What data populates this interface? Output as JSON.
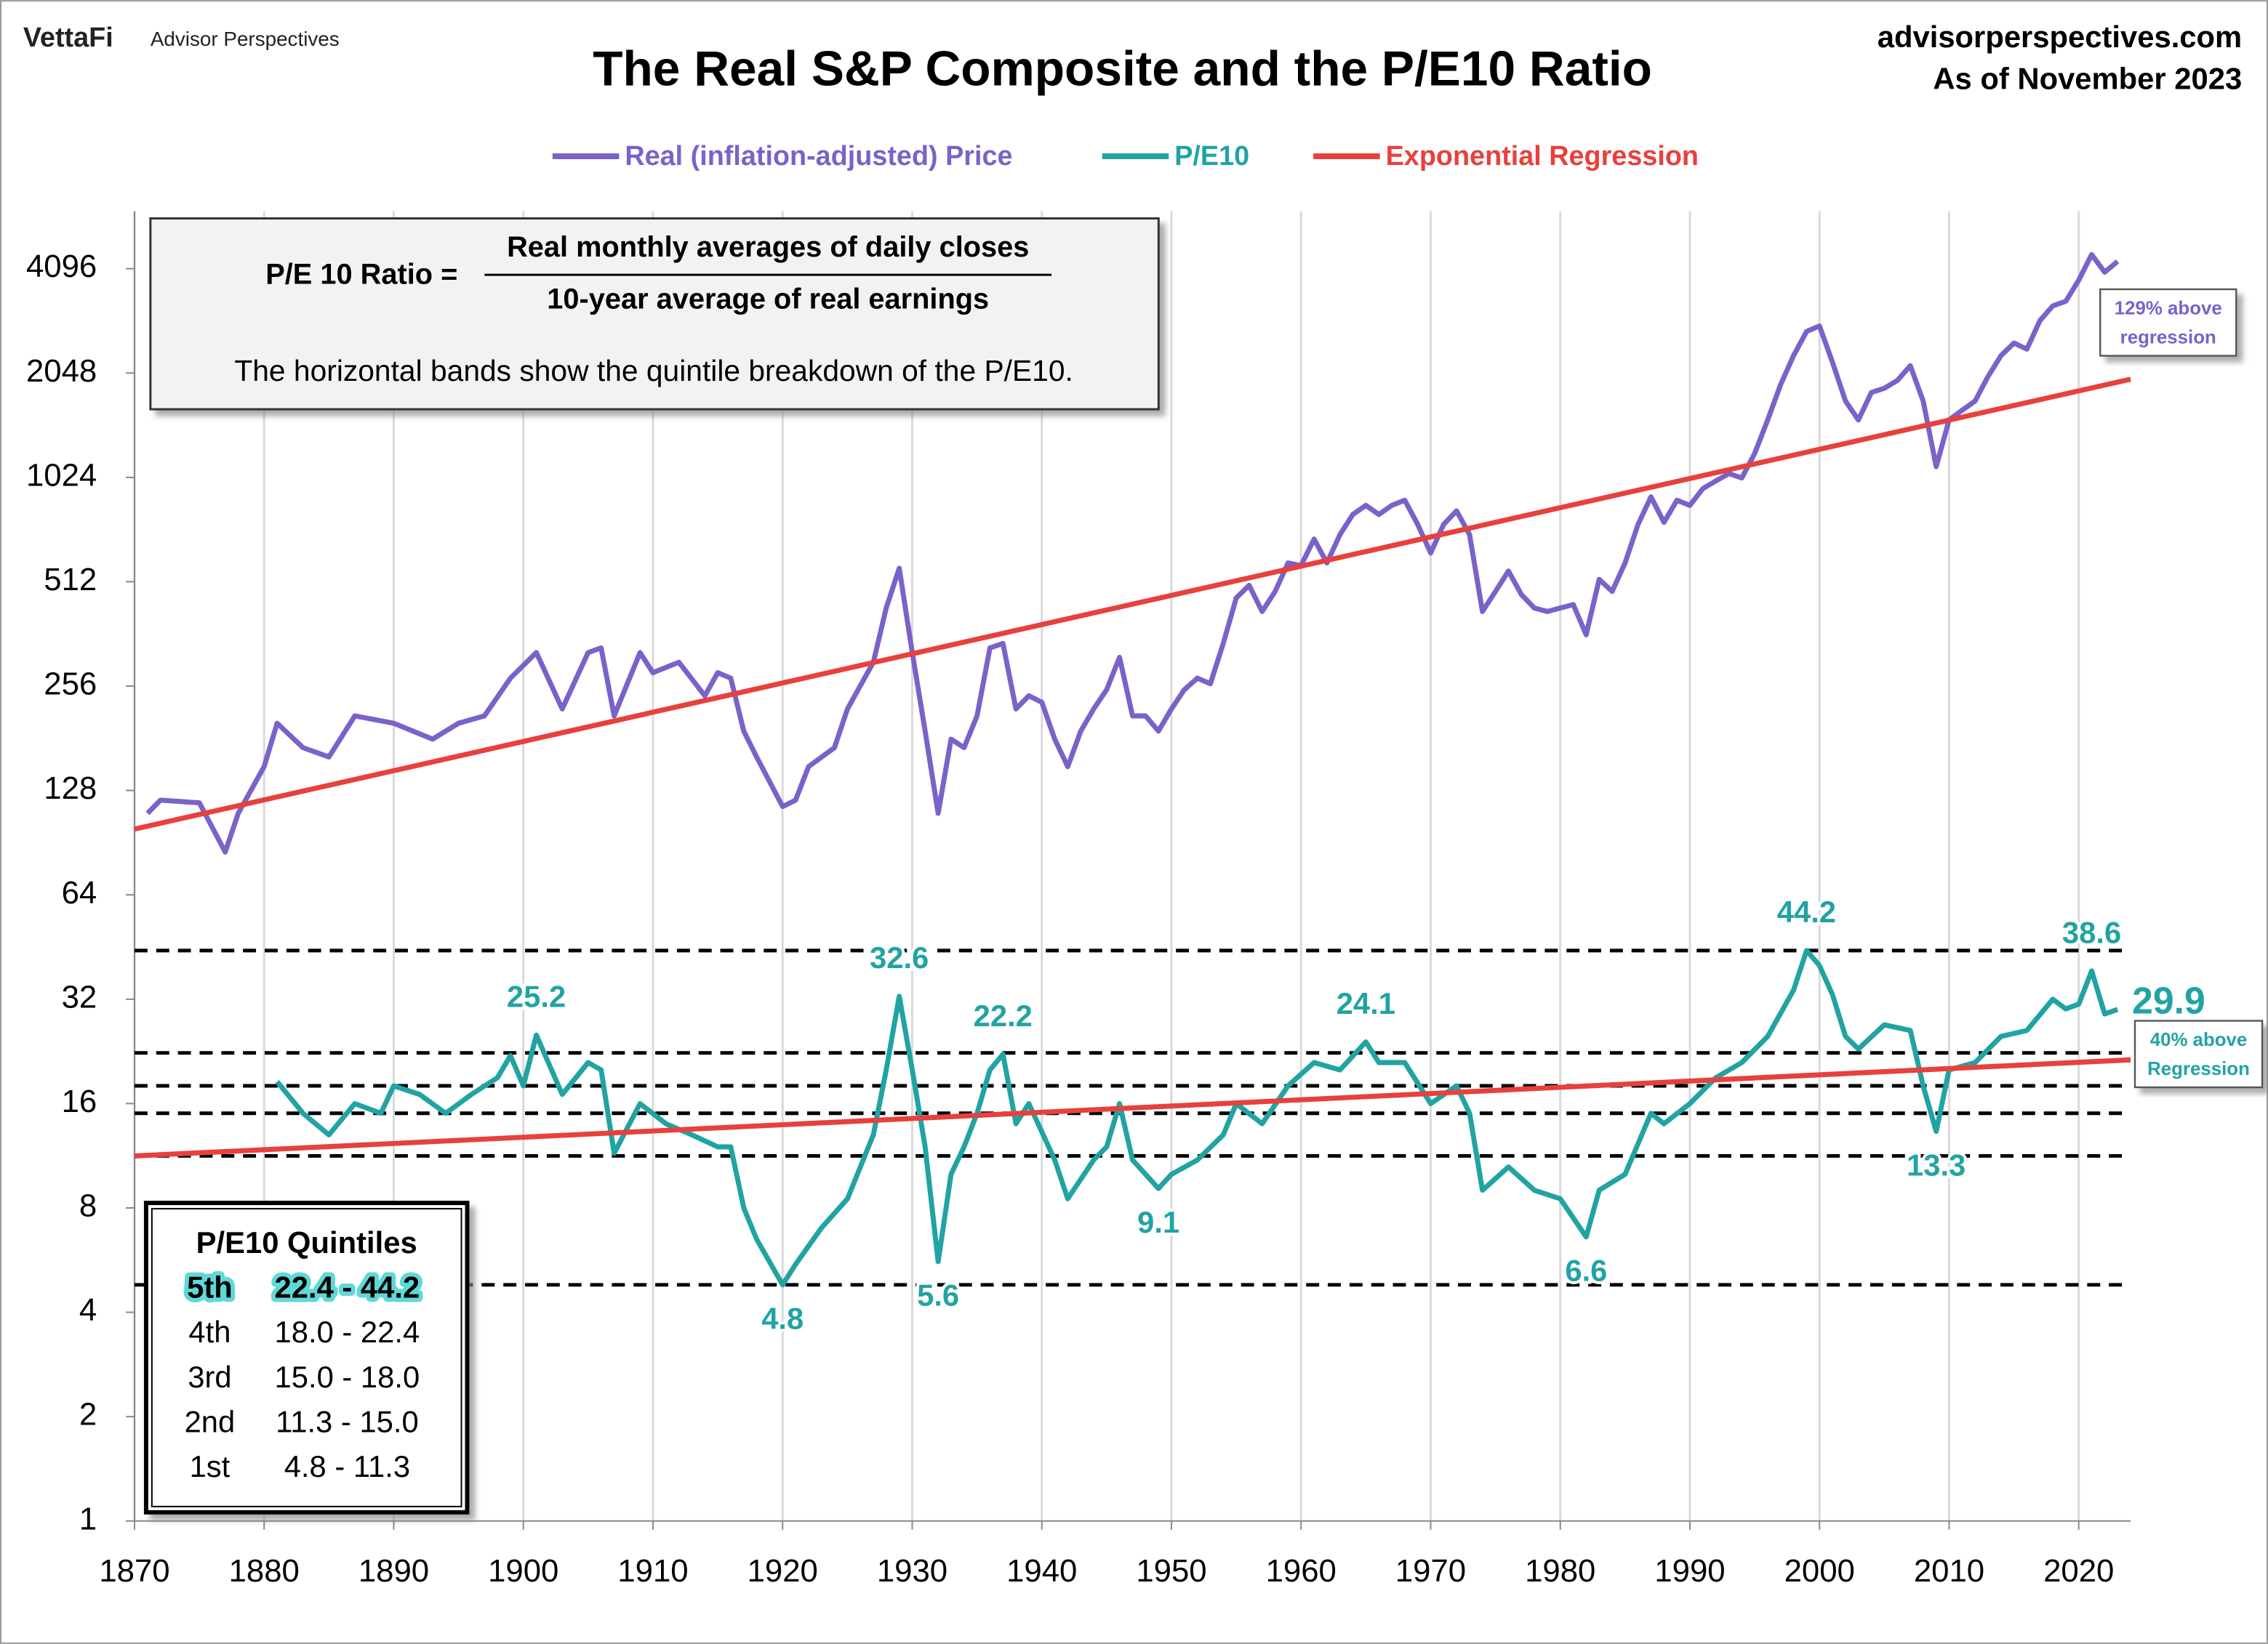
{
  "header": {
    "logo": "VettaFi",
    "brand": "Advisor Perspectives",
    "site": "advisorperspectives.com",
    "date": "As of November 2023"
  },
  "formula_box": {
    "lhs": "P/E 10 Ratio =",
    "numerator": "Real monthly averages of daily closes",
    "denominator": "10-year average of real earnings",
    "note": "The horizontal bands show the quintile breakdown of the P/E10."
  },
  "quintile_table": {
    "title": "P/E10 Quintiles",
    "highlight_row": 0,
    "rows": [
      [
        "5th",
        "22.4 - 44.2"
      ],
      [
        "4th",
        "18.0 - 22.4"
      ],
      [
        "3rd",
        "15.0 - 18.0"
      ],
      [
        "2nd",
        "11.3 - 15.0"
      ],
      [
        "1st",
        "4.8 - 11.3"
      ]
    ]
  },
  "callouts": [
    {
      "lines": [
        "129% above",
        "regression"
      ],
      "color": "#7a62c9"
    },
    {
      "lines": [
        "40% above",
        "Regression"
      ],
      "color": "#21a3a3"
    }
  ],
  "chart_data": {
    "type": "line",
    "title": "The Real S&P Composite and the P/E10 Ratio",
    "log_scale": true,
    "grid": "x",
    "xlim": [
      1870,
      2024
    ],
    "xticks": [
      1870,
      1880,
      1890,
      1900,
      1910,
      1920,
      1930,
      1940,
      1950,
      1960,
      1970,
      1980,
      1990,
      2000,
      2010,
      2020
    ],
    "ylim": [
      1,
      6000
    ],
    "yticks": [
      1,
      2,
      4,
      8,
      16,
      32,
      64,
      128,
      256,
      512,
      1024,
      2048,
      4096
    ],
    "quintile_lines": [
      44.2,
      22.4,
      18.0,
      15.0,
      11.3,
      4.8
    ],
    "series": [
      {
        "name": "Real (inflation-adjusted) Price",
        "color": "#7a62c9",
        "x": [
          1871,
          1872,
          1875,
          1877,
          1878,
          1880,
          1881,
          1883,
          1885,
          1887,
          1890,
          1893,
          1895,
          1897,
          1899,
          1901,
          1903,
          1905,
          1906,
          1907,
          1909,
          1910,
          1912,
          1914,
          1915,
          1916,
          1917,
          1918,
          1920,
          1921,
          1922,
          1924,
          1925,
          1927,
          1928,
          1929,
          1930,
          1931,
          1932,
          1933,
          1934,
          1935,
          1936,
          1937,
          1938,
          1939,
          1940,
          1941,
          1942,
          1943,
          1944,
          1945,
          1946,
          1947,
          1948,
          1949,
          1950,
          1951,
          1952,
          1953,
          1954,
          1955,
          1956,
          1957,
          1958,
          1959,
          1960,
          1961,
          1962,
          1963,
          1964,
          1965,
          1966,
          1967,
          1968,
          1969,
          1970,
          1971,
          1972,
          1973,
          1974,
          1975,
          1976,
          1977,
          1978,
          1979,
          1980,
          1981,
          1982,
          1983,
          1984,
          1985,
          1986,
          1987,
          1988,
          1989,
          1990,
          1991,
          1992,
          1993,
          1994,
          1995,
          1996,
          1997,
          1998,
          1999,
          2000,
          2001,
          2002,
          2003,
          2004,
          2005,
          2006,
          2007,
          2008,
          2009,
          2010,
          2011,
          2012,
          2013,
          2014,
          2015,
          2016,
          2017,
          2018,
          2019,
          2020,
          2021,
          2022,
          2023
        ],
        "values": [
          110,
          120,
          118,
          85,
          110,
          150,
          200,
          170,
          160,
          210,
          200,
          180,
          200,
          210,
          270,
          320,
          220,
          320,
          330,
          210,
          320,
          280,
          300,
          240,
          280,
          270,
          190,
          160,
          115,
          120,
          150,
          170,
          220,
          300,
          430,
          560,
          320,
          190,
          110,
          180,
          170,
          210,
          330,
          340,
          220,
          240,
          230,
          180,
          150,
          190,
          220,
          250,
          310,
          210,
          210,
          190,
          220,
          250,
          270,
          260,
          340,
          460,
          500,
          420,
          480,
          580,
          570,
          680,
          580,
          700,
          800,
          850,
          800,
          850,
          880,
          750,
          620,
          750,
          820,
          700,
          420,
          480,
          550,
          470,
          430,
          420,
          430,
          440,
          360,
          520,
          480,
          580,
          750,
          900,
          760,
          880,
          850,
          950,
          1000,
          1050,
          1020,
          1200,
          1500,
          1900,
          2300,
          2700,
          2800,
          2200,
          1700,
          1500,
          1800,
          1850,
          1950,
          2150,
          1700,
          1100,
          1500,
          1600,
          1700,
          2000,
          2300,
          2500,
          2400,
          2900,
          3200,
          3300,
          3800,
          4500,
          4000,
          4300
        ]
      },
      {
        "name": "P/E10",
        "color": "#21a3a3",
        "x": [
          1881,
          1883,
          1885,
          1887,
          1889,
          1890,
          1892,
          1894,
          1896,
          1898,
          1899,
          1900,
          1901,
          1903,
          1905,
          1906,
          1907,
          1909,
          1911,
          1913,
          1915,
          1916,
          1917,
          1918,
          1920,
          1921,
          1923,
          1925,
          1927,
          1928,
          1929,
          1930,
          1931,
          1932,
          1933,
          1934,
          1935,
          1936,
          1937,
          1938,
          1939,
          1941,
          1942,
          1944,
          1945,
          1946,
          1947,
          1949,
          1950,
          1952,
          1954,
          1955,
          1957,
          1959,
          1961,
          1963,
          1965,
          1966,
          1968,
          1970,
          1972,
          1973,
          1974,
          1976,
          1978,
          1980,
          1982,
          1983,
          1985,
          1987,
          1988,
          1990,
          1992,
          1994,
          1996,
          1998,
          1999,
          2000,
          2001,
          2002,
          2003,
          2005,
          2007,
          2008,
          2009,
          2010,
          2012,
          2014,
          2016,
          2018,
          2019,
          2020,
          2021,
          2022,
          2023
        ],
        "values": [
          18.5,
          15,
          13,
          16,
          15,
          18,
          17,
          15,
          17,
          19,
          22,
          18,
          25.2,
          17,
          21,
          20,
          11.5,
          16,
          14,
          13,
          12,
          12,
          8,
          6.5,
          4.8,
          5.5,
          7,
          8.5,
          13,
          20,
          32.6,
          20,
          12,
          5.6,
          10,
          12,
          15,
          20,
          22.2,
          14,
          16,
          11,
          8.5,
          11,
          12,
          16,
          11,
          9.1,
          10,
          11,
          13,
          16,
          14,
          18,
          21,
          20,
          24.1,
          21,
          21,
          16,
          18,
          15,
          9,
          10.5,
          9,
          8.5,
          6.6,
          9,
          10,
          15,
          14,
          16,
          19,
          21,
          25,
          34,
          44.2,
          40,
          33,
          25,
          23,
          27,
          26,
          18,
          13.3,
          20,
          21,
          25,
          26,
          32,
          30,
          31,
          38.6,
          29,
          29.9
        ]
      },
      {
        "name": "Exponential Regression",
        "color": "#e8403d",
        "x": [
          1870,
          2024,
          2024,
          1870,
          2024
        ],
        "values": [
          99,
          1966,
          null,
          11.3,
          21.4
        ]
      }
    ],
    "annotations": [
      {
        "x": 1901,
        "value": 25.2,
        "position": "above"
      },
      {
        "x": 1929,
        "value": 32.6,
        "position": "above"
      },
      {
        "x": 1937,
        "value": 22.2,
        "position": "above"
      },
      {
        "x": 1965,
        "value": 24.1,
        "position": "above"
      },
      {
        "x": 1999,
        "value": 44.2,
        "position": "above"
      },
      {
        "x": 2021,
        "value": 38.6,
        "position": "above"
      },
      {
        "x": 1920,
        "value": 4.8,
        "position": "below"
      },
      {
        "x": 1932,
        "value": 5.6,
        "position": "below"
      },
      {
        "x": 1949,
        "value": 9.1,
        "position": "below"
      },
      {
        "x": 1982,
        "value": 6.6,
        "position": "below"
      },
      {
        "x": 2009,
        "value": 13.3,
        "position": "below"
      },
      {
        "x": 2023,
        "value": 29.9,
        "position": "right"
      }
    ]
  }
}
